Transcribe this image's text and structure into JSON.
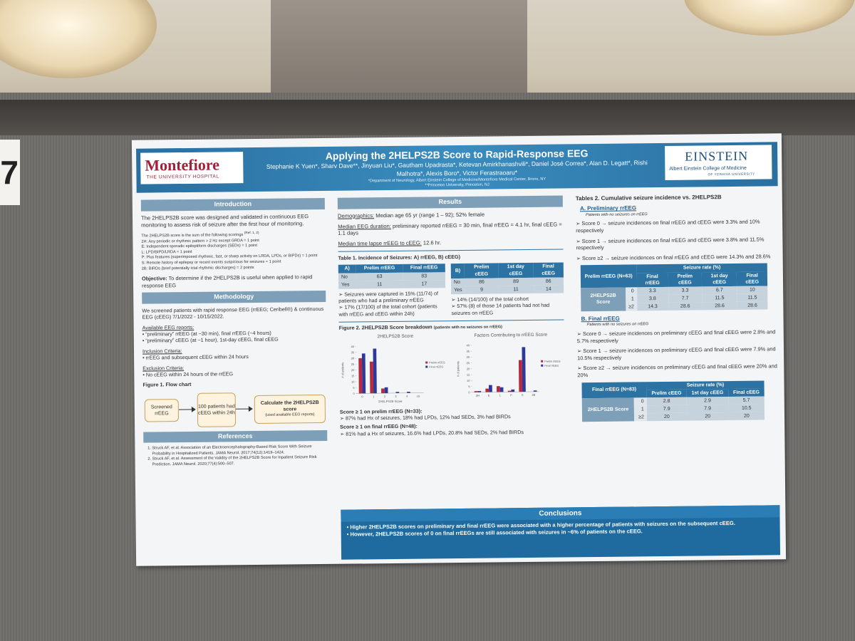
{
  "scene": {
    "room_label": "7"
  },
  "poster": {
    "title": "Applying the 2HELPS2B Score to Rapid-Response EEG",
    "authors": "Stephanie K Yuen*, Sharv Dave**, Jinyuan Liu*, Gautham Upadrasta*, Ketevan Amirkhanashvili*, Daniel José Correa*, Alan D. Legatt*, Rishi Malhotra*, Alexis Boro*, Victor Ferastraoaru*",
    "affiliations": [
      "*Department of Neurology, Albert Einstein College of Medicine/Montefiore Medical Center, Bronx, NY",
      "**Princeton University, Princeton, NJ"
    ],
    "logo_left": {
      "name": "Montefiore",
      "sub": "THE UNIVERSITY HOSPITAL"
    },
    "logo_right": {
      "name": "EINSTEIN",
      "sub": "Albert Einstein College of Medicine",
      "sub2": "OF YESHIVA UNIVERSITY"
    },
    "introduction": {
      "heading": "Introduction",
      "text": "The 2HELPS2B score was designed and validated in continuous EEG monitoring to assess risk of seizure after the first hour of monitoring.",
      "scoring_intro": "The 2HELPS2B score is the sum of the following scorings",
      "scoring_ref": "(Ref. 1, 2)",
      "scoring": [
        "2H: Any periodic or rhythmic pattern > 2 Hz except GRDA = 1 point",
        "E: Independent sporadic epileptiform discharges (SEDs) = 1 point",
        "L: LPD/BIPD/LRDA = 1 point",
        "P: Plus features (superimposed rhythmic, fast, or sharp activity on LRDA, LPDs, or BIPDs) = 1 point",
        "S: Remote history of epilepsy or recent events suspicious for seizures = 1 point",
        "2B: BIRDs (brief potentially ictal rhythmic discharges) = 2 points"
      ]
    },
    "objective": {
      "label": "Objective:",
      "text": "To determine if the 2HELPS2B is useful when applied to rapid response EEG"
    },
    "methodology": {
      "heading": "Methodology",
      "text": "We screened patients with rapid response EEG (rrEEG; Ceribell®) & continuous EEG (cEEG) 7/1/2022 - 10/15/2022.",
      "reports_label": "Available EEG reports:",
      "reports": [
        "“preliminary” rrEEG (at ~30 min), final rrEEG (~4 hours)",
        "“preliminary” cEEG (at ~1 hour), 1st-day cEEG, final cEEG"
      ],
      "inclusion_label": "Inclusion Criteria:",
      "inclusion": [
        "rrEEG and subsequent cEEG within 24 hours"
      ],
      "exclusion_label": "Exclusion Criteria:",
      "exclusion": [
        "No cEEG within 24 hours of the rrEEG"
      ]
    },
    "figure1": {
      "title": "Figure 1. Flow chart",
      "nodes": [
        "Screened rrEEG",
        "100 patients had cEEG within 24h",
        "Calculate the 2HELPS2B score"
      ],
      "note": "(used available EEG reports)"
    },
    "references": {
      "heading": "References",
      "items": [
        "Struck AF, et al. Association of an Electroencephalography-Based Risk Score With Seizure Probability in Hospitalized Patients. JAMA Neurol. 2017;74(12):1419–1424.",
        "Struck AF, et al. Assessment of the Validity of the 2HELPS2B Score for Inpatient Seizure Risk Prediction. JAMA Neurol. 2020;77(4):500–507."
      ]
    },
    "results": {
      "heading": "Results",
      "lines": [
        {
          "label": "Demographics:",
          "text": "Median age 65 yr (range 1 – 92); 52% female"
        },
        {
          "label": "Median EEG duration:",
          "text": "preliminary reported rrEEG = 30 min, final rrEEG = 4.1 hr, final cEEG = 1.1 days"
        },
        {
          "label": "Median time lapse rrEEG to cEEG:",
          "text": "12.6 hr."
        }
      ]
    },
    "table1": {
      "title": "Table 1. Incidence of Seizures: A) rrEEG, B) cEEG)",
      "a": {
        "header": [
          "A)",
          "Prelim rrEEG",
          "Final rrEEG"
        ],
        "rows": [
          [
            "No",
            63,
            83
          ],
          [
            "Yes",
            11,
            17
          ]
        ],
        "notes": [
          "Seizures were captured in 15% (11/74) of patients who had a preliminary rrEEG",
          "17% (17/100) of the total cohort (patients with rrEEG and cEEG within 24h)"
        ]
      },
      "b": {
        "header": [
          "B)",
          "Prelim cEEG",
          "1st day cEEG",
          "Final cEEG"
        ],
        "rows": [
          [
            "No",
            86,
            89,
            86
          ],
          [
            "Yes",
            9,
            11,
            14
          ]
        ],
        "notes": [
          "14% (14/100) of the total cohort",
          "57% (8) of those 14 patients had not had seizures on rrEEG"
        ]
      }
    },
    "figure2": {
      "title": "Figure 2. 2HELPS2B Score breakdown",
      "subtitle": "(patients with no seizures on rrEEG)",
      "charts": [
        {
          "type": "bar",
          "title": "2HELPS2B Score",
          "x_label": "2HELPS2B Score",
          "y_label": "# of patients",
          "categories": [
            "0",
            "1",
            "2",
            "3",
            "4",
            "≥5"
          ],
          "series": [
            {
              "name": "Prelim rrEEG",
              "color": "#b8283e",
              "values": [
                30,
                27,
                4,
                0,
                0,
                0
              ]
            },
            {
              "name": "Final rrEEG",
              "color": "#2b3a9a",
              "values": [
                34,
                38,
                5,
                1,
                1,
                0
              ]
            }
          ],
          "ylim": [
            0,
            40
          ],
          "yticks": [
            0,
            5,
            10,
            15,
            20,
            25,
            30,
            35,
            40
          ]
        },
        {
          "type": "bar",
          "title": "Factors Contributing to rrEEG Score",
          "y_label": "# of patients",
          "categories": [
            "2H",
            "E",
            "L",
            "P",
            "S",
            "2B"
          ],
          "series": [
            {
              "name": "Prelim rrEEG",
              "color": "#b8283e",
              "values": [
                1,
                3,
                5,
                1,
                27,
                0
              ]
            },
            {
              "name": "Final rrEEG",
              "color": "#2b3a9a",
              "values": [
                1,
                6,
                4,
                2,
                38,
                1
              ]
            }
          ],
          "ylim": [
            0,
            40
          ],
          "yticks": [
            0,
            5,
            10,
            15,
            20,
            25,
            30,
            35,
            40
          ]
        }
      ],
      "findings": [
        {
          "label": "Score ≥ 1 on prelim rrEEG (N=33):",
          "text": "87% had Hx of seizures, 18% had LPDs, 12% had SEDs, 3% had BIRDs"
        },
        {
          "label": "Score ≥ 1 on final rrEEG (N=48):",
          "text": "81% had a Hx of seizures, 16.6% had LPDs, 20.8% had SEDs, 2% had BIRDs"
        }
      ]
    },
    "tables2": {
      "title": "Tables 2. Cumulative seizure incidence vs. 2HELPS2B",
      "a": {
        "heading": "A. Preliminary rrEEG",
        "subheading": "Patients with no seizures on rrEEG",
        "bullets": [
          "Score 0 → seizure incidences on final rrEEG and cEEG were 3.3% and 10% respectively",
          "Score 1 → seizure incidences on final rrEEG and cEEG were 3.8% and 11.5% respectively",
          "Score ≥2 → seizure incidences on final rrEEG and cEEG were 14.3% and 28.6%"
        ],
        "table": {
          "corner": "Prelim rrEEG (N=63)",
          "group": "Seizure rate (%)",
          "columns": [
            "Final rrEEG",
            "Prelim cEEG",
            "1st day cEEG",
            "Final cEEG"
          ],
          "row_group": "2HELPS2B Score",
          "rows": [
            [
              "0",
              3.3,
              3.3,
              6.7,
              10
            ],
            [
              "1",
              3.8,
              7.7,
              11.5,
              11.5
            ],
            [
              "≥2",
              14.3,
              28.6,
              28.6,
              28.6
            ]
          ]
        }
      },
      "b": {
        "heading": "B. Final rrEEG",
        "subheading": "Patients with no seizures on rrEEG",
        "bullets": [
          "Score 0 → seizure incidences on preliminary cEEG and final cEEG were 2.8% and 5.7% respectively",
          "Score 1 → seizure incidences on preliminary cEEG and final cEEG were 7.9% and 10.5% respectively",
          "Score ≥2 → seizure incidences on preliminary cEEG and final cEEG were 20% and 20%"
        ],
        "table": {
          "corner": "Final rrEEG (N=83)",
          "group": "Seizure rate (%)",
          "columns": [
            "Prelim cEEG",
            "1st day cEEG",
            "Final cEEG"
          ],
          "row_group": "2HELPS2B Score",
          "rows": [
            [
              "0",
              2.8,
              2.9,
              5.7
            ],
            [
              "1",
              7.9,
              7.9,
              10.5
            ],
            [
              "≥2",
              20,
              20,
              20
            ]
          ]
        }
      }
    },
    "conclusions": {
      "heading": "Conclusions",
      "items": [
        "Higher 2HELPS2B scores on preliminary and final rrEEG were associated with a higher percentage of patients with seizures on the subsequent cEEG.",
        "However, 2HELPS2B scores of 0 on final rrEEGs are still associated with seizures in ~6% of patients on the cEEG."
      ]
    }
  }
}
